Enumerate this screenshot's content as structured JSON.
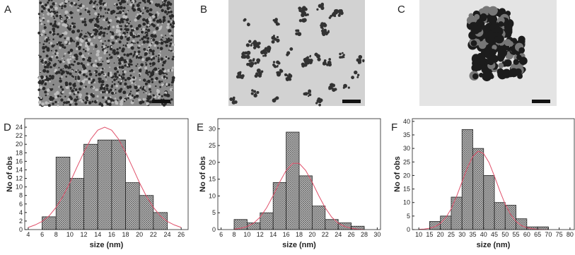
{
  "images": [
    {
      "label": "A"
    },
    {
      "label": "B"
    },
    {
      "label": "C"
    }
  ],
  "chart_data": [
    {
      "type": "histogram",
      "panel_label": "D",
      "xlabel": "size (nm)",
      "ylabel": "No of obs",
      "bins": [
        6,
        8,
        10,
        12,
        14,
        16,
        18,
        20,
        22,
        24
      ],
      "values": [
        3,
        17,
        12,
        20,
        21,
        21,
        11,
        8,
        4
      ],
      "color": "#b8b8b8",
      "fit": {
        "color": "#e0506a",
        "x": [
          4,
          5,
          6,
          7,
          8,
          9,
          10,
          11,
          12,
          13,
          14,
          15,
          16,
          17,
          18,
          19,
          20,
          21,
          22,
          23,
          24,
          25,
          26
        ],
        "y": [
          0.5,
          1.1,
          1.9,
          3.2,
          5.2,
          7.8,
          11.0,
          14.6,
          18.1,
          21.2,
          23.3,
          24,
          23.3,
          21.2,
          18.1,
          14.6,
          11.0,
          7.8,
          5.2,
          3.2,
          1.9,
          1.1,
          0.5
        ]
      },
      "xlim": [
        3.5,
        27
      ],
      "ylim": [
        0,
        26
      ],
      "xticks": [
        4,
        6,
        8,
        10,
        12,
        14,
        16,
        18,
        20,
        22,
        24,
        26
      ],
      "yticks": [
        0,
        2,
        4,
        6,
        8,
        10,
        12,
        14,
        16,
        18,
        20,
        22,
        24
      ]
    },
    {
      "type": "histogram",
      "panel_label": "E",
      "xlabel": "size (nm)",
      "ylabel": "No of obs",
      "bins": [
        8,
        10,
        12,
        14,
        16,
        18,
        20,
        22,
        24,
        26,
        28
      ],
      "values": [
        3,
        2,
        5,
        14,
        29,
        16,
        7,
        3,
        2,
        1
      ],
      "color": "#b8b8b8",
      "fit": {
        "color": "#e0506a",
        "x": [
          8,
          9,
          10,
          11,
          12,
          13,
          14,
          15,
          16,
          17,
          18,
          19,
          20,
          21,
          22,
          23,
          24,
          25,
          26,
          27,
          28
        ],
        "y": [
          0.1,
          0.4,
          0.9,
          1.9,
          3.7,
          6.5,
          10.1,
          14.1,
          17.6,
          19.7,
          19.7,
          17.6,
          14.1,
          10.1,
          6.5,
          3.7,
          1.9,
          0.9,
          0.4,
          0.1,
          0.0
        ]
      },
      "xlim": [
        5.5,
        30.5
      ],
      "ylim": [
        0,
        33
      ],
      "xticks": [
        6,
        8,
        10,
        12,
        14,
        16,
        18,
        20,
        22,
        24,
        26,
        28,
        30
      ],
      "yticks": [
        0,
        5,
        10,
        15,
        20,
        25,
        30
      ]
    },
    {
      "type": "histogram",
      "panel_label": "F",
      "xlabel": "size (nm)",
      "ylabel": "No of obs",
      "bins": [
        15,
        20,
        25,
        30,
        35,
        40,
        45,
        50,
        55,
        60,
        65,
        70
      ],
      "values": [
        3,
        5,
        12,
        37,
        30,
        20,
        10,
        9,
        4,
        1,
        1
      ],
      "color": "#b8b8b8",
      "fit": {
        "color": "#e0506a",
        "x": [
          10,
          12.5,
          15,
          17.5,
          20,
          22.5,
          25,
          27.5,
          30,
          32.5,
          35,
          37.5,
          40,
          42.5,
          45,
          47.5,
          50,
          52.5,
          55,
          57.5,
          60,
          62.5,
          65,
          67.5,
          70
        ],
        "y": [
          0.1,
          0.2,
          0.5,
          1.1,
          2.3,
          4.4,
          7.7,
          12.3,
          17.6,
          22.9,
          27.0,
          29.0,
          28.1,
          24.8,
          19.8,
          14.3,
          9.4,
          5.6,
          3.0,
          1.5,
          0.7,
          0.3,
          0.1,
          0.0,
          0.0
        ]
      },
      "xlim": [
        7,
        82
      ],
      "ylim": [
        0,
        41
      ],
      "xticks": [
        10,
        15,
        20,
        25,
        30,
        35,
        40,
        45,
        50,
        55,
        60,
        65,
        70,
        75,
        80
      ],
      "yticks": [
        0,
        5,
        10,
        15,
        20,
        25,
        30,
        35,
        40
      ]
    }
  ]
}
